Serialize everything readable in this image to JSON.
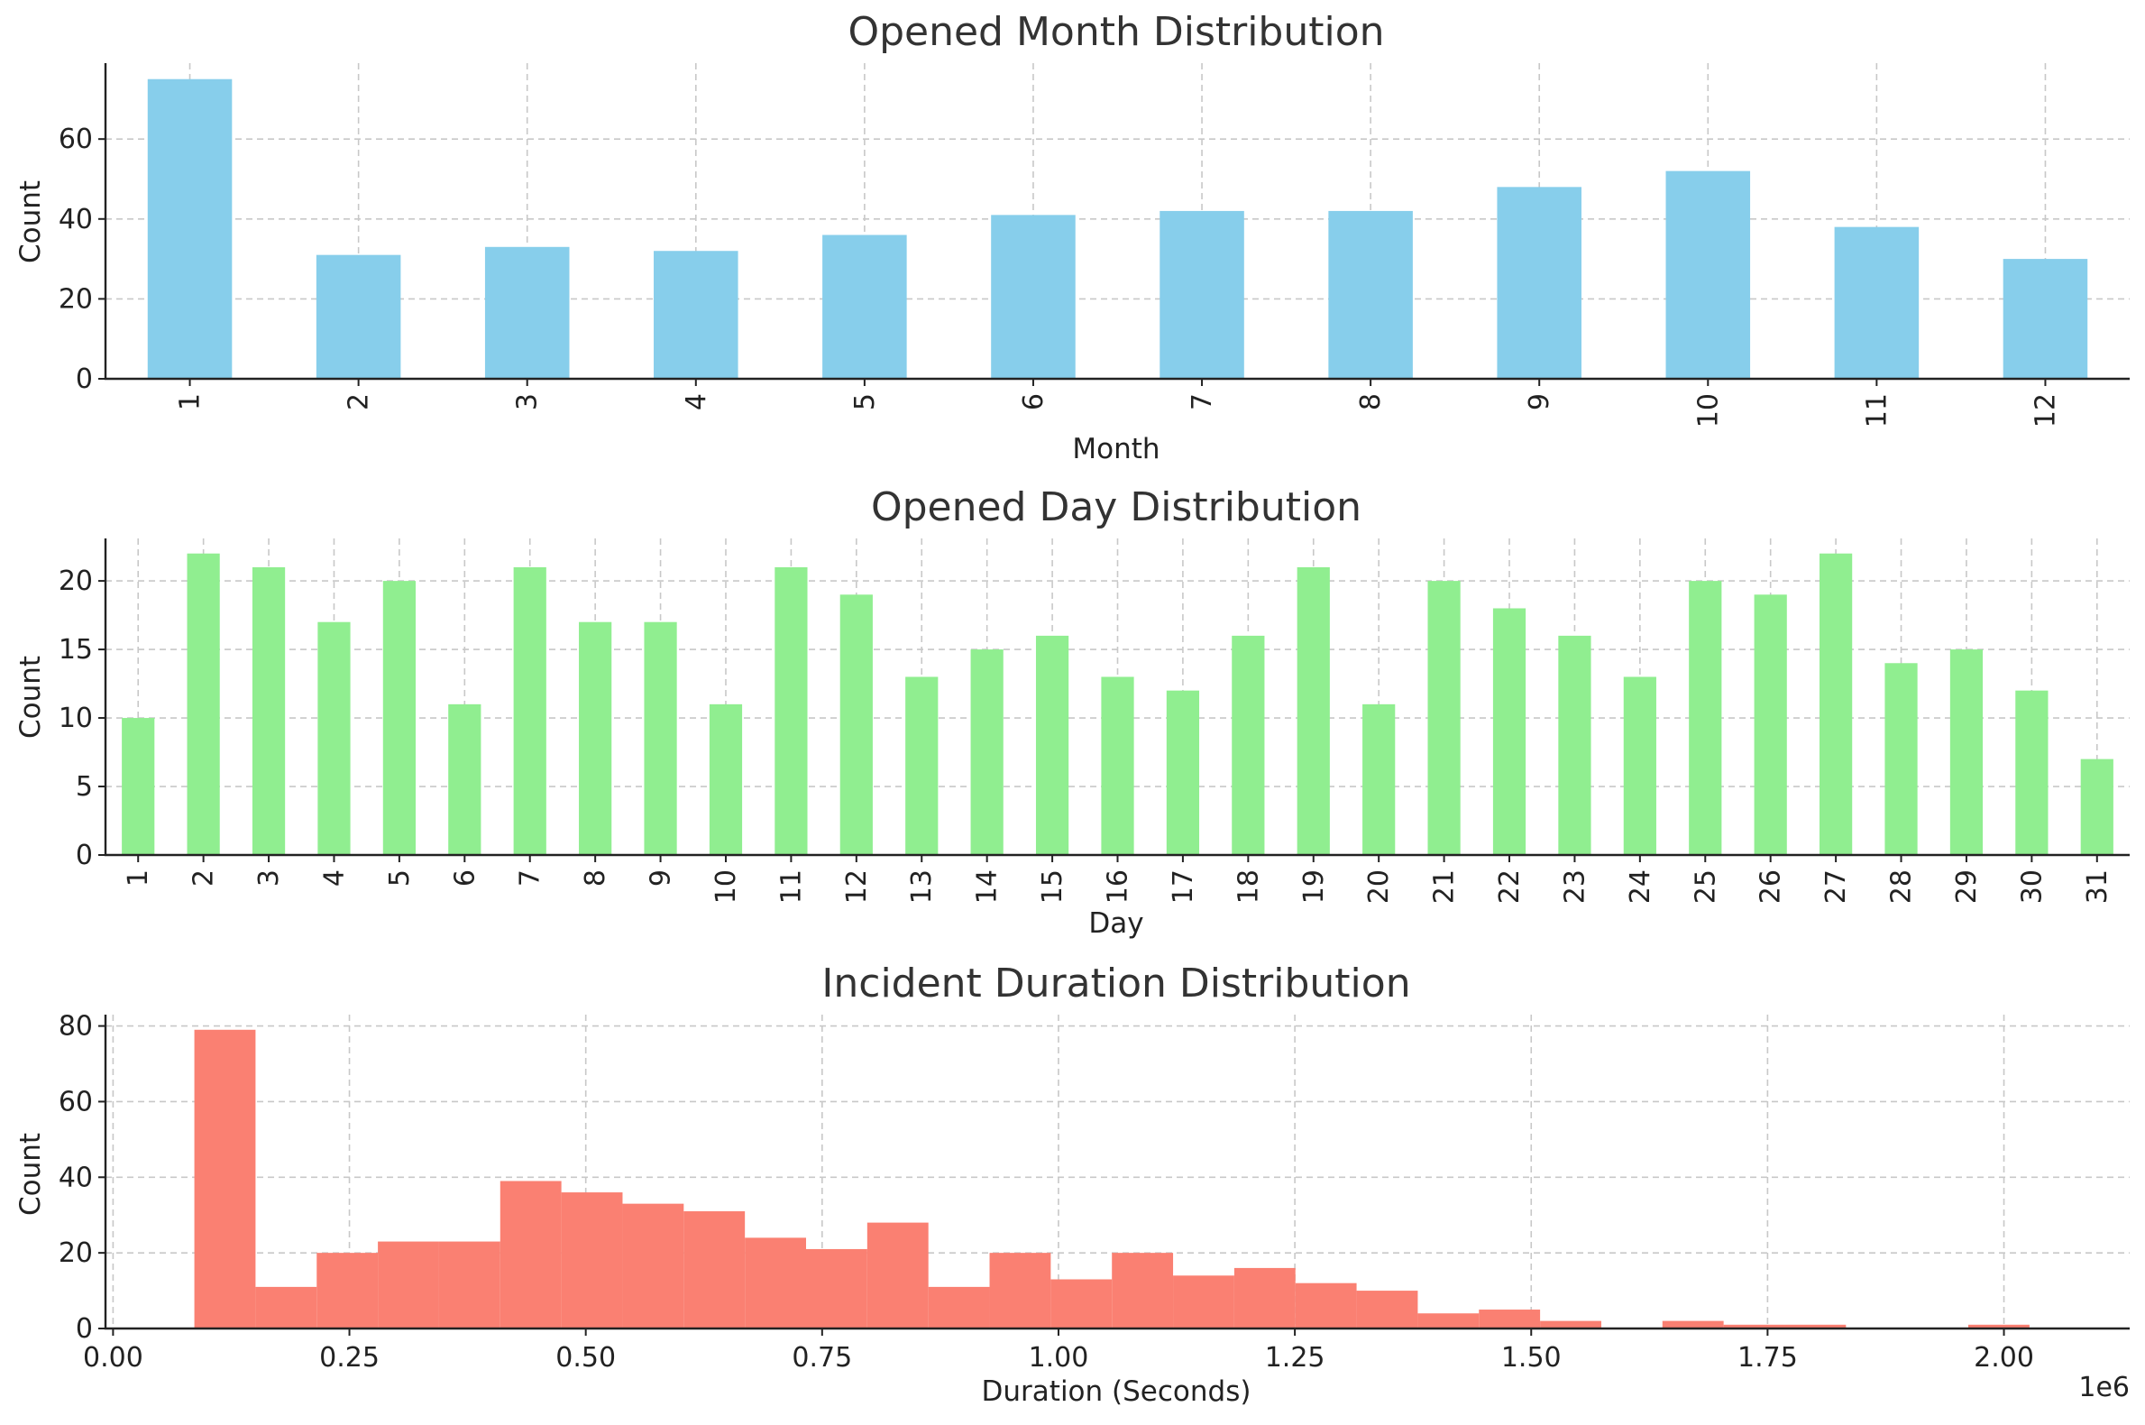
{
  "chart_data": [
    {
      "type": "bar",
      "title": "Opened Month Distribution",
      "xlabel": "Month",
      "ylabel": "Count",
      "color": "#87CEEB",
      "categories": [
        "1",
        "2",
        "3",
        "4",
        "5",
        "6",
        "7",
        "8",
        "9",
        "10",
        "11",
        "12"
      ],
      "values": [
        75,
        31,
        33,
        32,
        36,
        41,
        42,
        42,
        48,
        52,
        38,
        30
      ],
      "ylim": [
        0,
        79
      ],
      "yticks": [
        "0",
        "20",
        "40",
        "60"
      ],
      "xtick_rotation": "vertical",
      "grid": true
    },
    {
      "type": "bar",
      "title": "Opened Day Distribution",
      "xlabel": "Day",
      "ylabel": "Count",
      "color": "#90EE90",
      "categories": [
        "1",
        "2",
        "3",
        "4",
        "5",
        "6",
        "7",
        "8",
        "9",
        "10",
        "11",
        "12",
        "13",
        "14",
        "15",
        "16",
        "17",
        "18",
        "19",
        "20",
        "21",
        "22",
        "23",
        "24",
        "25",
        "26",
        "27",
        "28",
        "29",
        "30",
        "31"
      ],
      "values": [
        10,
        22,
        21,
        17,
        20,
        11,
        21,
        17,
        17,
        11,
        21,
        19,
        13,
        15,
        16,
        13,
        12,
        16,
        21,
        11,
        20,
        18,
        16,
        13,
        20,
        19,
        22,
        14,
        15,
        12,
        7
      ],
      "ylim": [
        0,
        23.1
      ],
      "yticks": [
        "0",
        "5",
        "10",
        "15",
        "20"
      ],
      "xtick_rotation": "vertical",
      "grid": true
    },
    {
      "type": "histogram",
      "title": "Incident Duration Distribution",
      "xlabel": "Duration (Seconds)",
      "ylabel": "Count",
      "color": "#FA8072",
      "x_offset_label": "1e6",
      "xlim": [
        -0.008,
        2.133
      ],
      "ylim": [
        0,
        83
      ],
      "xticks": [
        "0.00",
        "0.25",
        "0.50",
        "0.75",
        "1.00",
        "1.25",
        "1.50",
        "1.75",
        "2.00"
      ],
      "yticks": [
        "0",
        "20",
        "40",
        "60",
        "80"
      ],
      "bin_start": 0.086,
      "bin_width": 0.0647,
      "counts": [
        79,
        11,
        20,
        23,
        23,
        39,
        36,
        33,
        31,
        24,
        21,
        28,
        11,
        20,
        13,
        20,
        14,
        16,
        12,
        10,
        4,
        5,
        2,
        0,
        2,
        1,
        1,
        0,
        0,
        1
      ],
      "grid": true
    }
  ]
}
